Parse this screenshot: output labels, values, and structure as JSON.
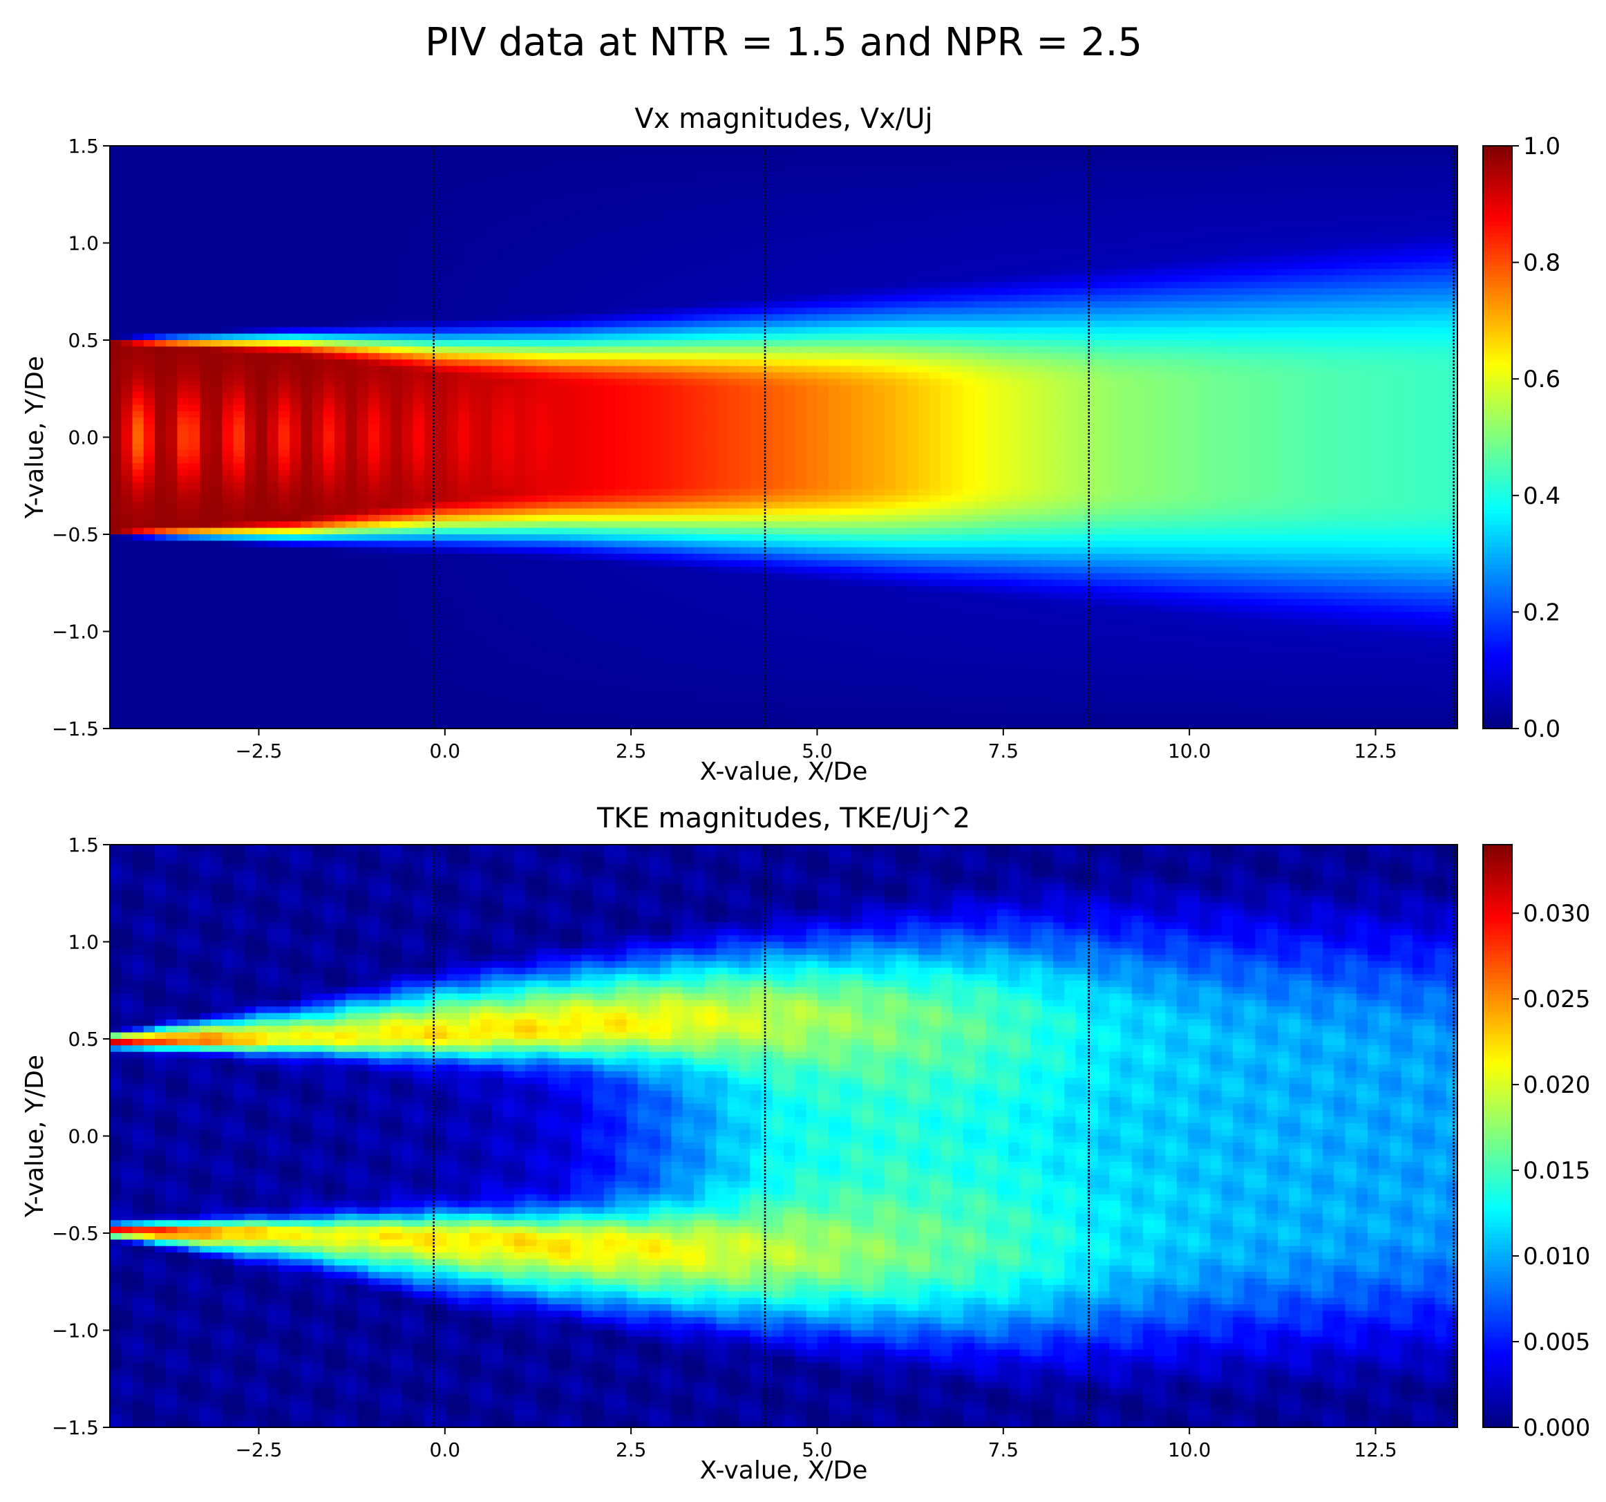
{
  "figure": {
    "suptitle": "PIV data at NTR = 1.5 and NPR = 2.5"
  },
  "chart_data": [
    {
      "type": "heatmap",
      "title": "Vx magnitudes, Vx/Uj",
      "xlabel": "X-value, X/De",
      "ylabel": "Y-value, Y/De",
      "xlim": [
        -4.5,
        13.6
      ],
      "ylim": [
        -1.5,
        1.5
      ],
      "x_ticks": [
        -2.5,
        0.0,
        2.5,
        5.0,
        7.5,
        10.0,
        12.5
      ],
      "x_tick_labels": [
        "−2.5",
        "0.0",
        "2.5",
        "5.0",
        "7.5",
        "10.0",
        "12.5"
      ],
      "y_ticks": [
        -1.5,
        -1.0,
        -0.5,
        0.0,
        0.5,
        1.0,
        1.5
      ],
      "y_tick_labels": [
        "−1.5",
        "−1.0",
        "−0.5",
        "0.0",
        "0.5",
        "1.0",
        "1.5"
      ],
      "colormap": "jet",
      "colorbar": {
        "range": [
          0.0,
          1.0
        ],
        "ticks": [
          0.0,
          0.2,
          0.4,
          0.6,
          0.8,
          1.0
        ],
        "tick_labels": [
          "0.0",
          "0.2",
          "0.4",
          "0.6",
          "0.8",
          "1.0"
        ]
      },
      "window_seams_x": [
        -0.15,
        4.3,
        8.65,
        13.55
      ],
      "field_profile": {
        "x": [
          -4.5,
          -2.0,
          0.0,
          1.5,
          3.0,
          4.5,
          6.0,
          7.5,
          9.0,
          10.5,
          12.0,
          13.6
        ],
        "centerline": [
          0.98,
          0.98,
          0.95,
          0.9,
          0.85,
          0.78,
          0.7,
          0.6,
          0.52,
          0.48,
          0.45,
          0.43
        ],
        "half_width": [
          0.5,
          0.5,
          0.47,
          0.47,
          0.49,
          0.52,
          0.56,
          0.6,
          0.65,
          0.7,
          0.75,
          0.8
        ],
        "edge_thickness": [
          0.03,
          0.18,
          0.34,
          0.42,
          0.5,
          0.58,
          0.65,
          0.72,
          0.78,
          0.84,
          0.9,
          0.95
        ]
      },
      "shock_cells_x": [
        -4.1,
        -3.45,
        -2.8,
        -2.15,
        -1.55,
        -0.95,
        -0.35,
        0.25,
        0.8,
        1.3
      ]
    },
    {
      "type": "heatmap",
      "title": "TKE magnitudes, TKE/Uj^2",
      "xlabel": "X-value, X/De",
      "ylabel": "Y-value, Y/De",
      "xlim": [
        -4.5,
        13.6
      ],
      "ylim": [
        -1.5,
        1.5
      ],
      "x_ticks": [
        -2.5,
        0.0,
        2.5,
        5.0,
        7.5,
        10.0,
        12.5
      ],
      "x_tick_labels": [
        "−2.5",
        "0.0",
        "2.5",
        "5.0",
        "7.5",
        "10.0",
        "12.5"
      ],
      "y_ticks": [
        -1.5,
        -1.0,
        -0.5,
        0.0,
        0.5,
        1.0,
        1.5
      ],
      "y_tick_labels": [
        "−1.5",
        "−1.0",
        "−0.5",
        "0.0",
        "0.5",
        "1.0",
        "1.5"
      ],
      "colormap": "jet",
      "colorbar": {
        "range": [
          0.0,
          0.034
        ],
        "ticks": [
          0.0,
          0.005,
          0.01,
          0.015,
          0.02,
          0.025,
          0.03
        ],
        "tick_labels": [
          "0.000",
          "0.005",
          "0.010",
          "0.015",
          "0.020",
          "0.025",
          "0.030"
        ]
      },
      "window_seams_x": [
        -0.15,
        4.3,
        8.65,
        13.55
      ],
      "field_profile": {
        "x": [
          -4.5,
          -2.0,
          0.0,
          1.5,
          3.0,
          4.5,
          6.0,
          7.5,
          9.0,
          10.5,
          12.0,
          13.6
        ],
        "peak": [
          0.03,
          0.021,
          0.022,
          0.022,
          0.021,
          0.019,
          0.017,
          0.015,
          0.012,
          0.0105,
          0.01,
          0.0095
        ],
        "center": [
          0.001,
          0.001,
          0.0015,
          0.003,
          0.008,
          0.013,
          0.014,
          0.013,
          0.011,
          0.0105,
          0.01,
          0.0095
        ],
        "shear_layer_y": [
          0.48,
          0.5,
          0.52,
          0.55,
          0.58,
          0.6,
          0.6,
          0.58,
          0.55,
          0.5,
          0.45,
          0.4
        ],
        "shear_layer_width": [
          0.03,
          0.1,
          0.16,
          0.2,
          0.25,
          0.3,
          0.36,
          0.42,
          0.48,
          0.55,
          0.6,
          0.65
        ],
        "outer_extent": [
          0.55,
          0.75,
          0.95,
          1.05,
          1.15,
          1.25,
          1.35,
          1.45,
          1.5,
          1.5,
          1.5,
          1.5
        ]
      }
    }
  ]
}
